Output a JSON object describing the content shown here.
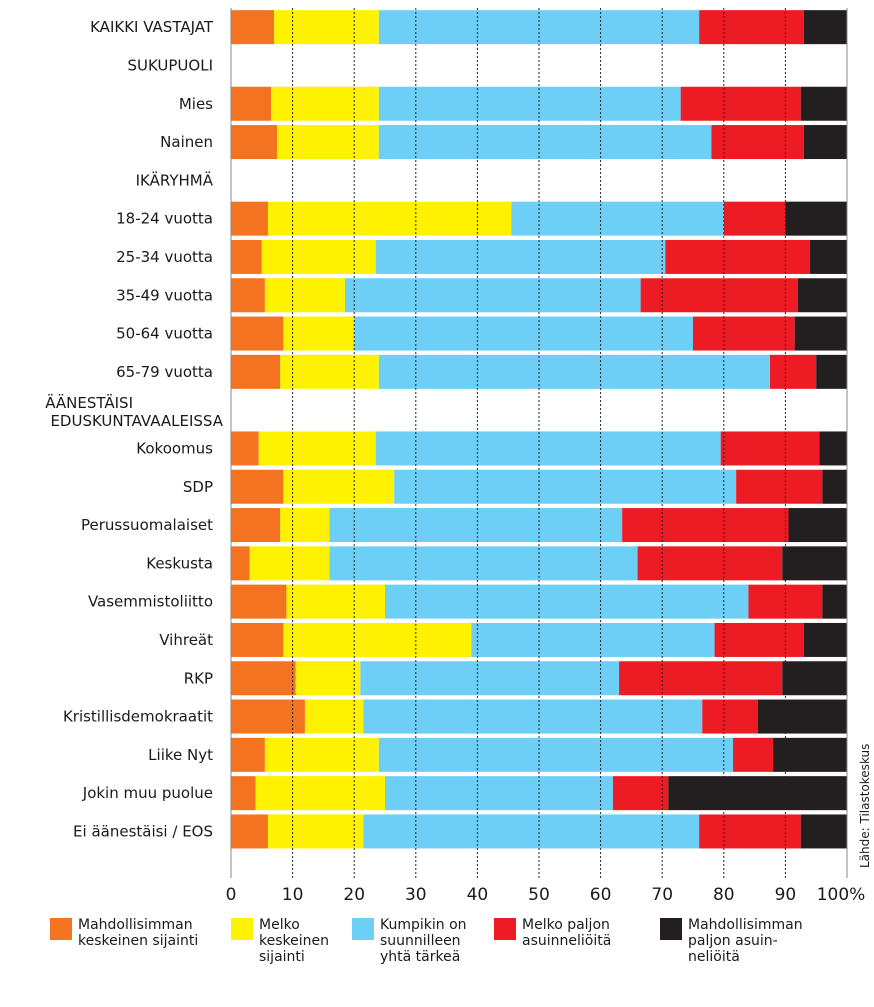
{
  "chart_data": {
    "type": "bar",
    "orientation": "horizontal",
    "stacked": true,
    "xlim": [
      0,
      100
    ],
    "x_ticks": [
      "0",
      "10",
      "20",
      "30",
      "40",
      "50",
      "60",
      "70",
      "80",
      "90",
      "100%"
    ],
    "grid": "vertical dotted",
    "source": "Lähde: Tilastokeskus",
    "series": [
      {
        "name": "Mahdollisimman\nkeskeinen sijainti",
        "color": "#f37321"
      },
      {
        "name": "Melko\nkeskeinen\nsijainti",
        "color": "#fff200"
      },
      {
        "name": "Kumpikin on\nsuunnilleen\nyhtä tärkeä",
        "color": "#6dcff6"
      },
      {
        "name": "Melko paljon\nasuinneliöitä",
        "color": "#ed1c24"
      },
      {
        "name": "Mahdollisimman\npaljon asuin-\nneliöitä",
        "color": "#231f20"
      }
    ],
    "rows": [
      {
        "label": "KAIKKI VASTAJAT",
        "values": [
          7,
          17,
          52,
          17,
          7
        ]
      },
      {
        "label": "SUKUPUOLI",
        "header": true
      },
      {
        "label": "Mies",
        "values": [
          6.5,
          17.5,
          49,
          19.5,
          7.5
        ]
      },
      {
        "label": "Nainen",
        "values": [
          7.5,
          16.5,
          54,
          15,
          7
        ]
      },
      {
        "label": "IKÄRYHMÄ",
        "header": true
      },
      {
        "label": "18-24 vuotta",
        "values": [
          6,
          39.5,
          34.5,
          10,
          10
        ]
      },
      {
        "label": "25-34 vuotta",
        "values": [
          5,
          18.5,
          47,
          23.5,
          6
        ]
      },
      {
        "label": "35-49 vuotta",
        "values": [
          5.5,
          13,
          48,
          25.5,
          8
        ]
      },
      {
        "label": "50-64 vuotta",
        "values": [
          8.5,
          11.5,
          55,
          16.5,
          8.5
        ]
      },
      {
        "label": "65-79 vuotta",
        "values": [
          8,
          16,
          63.5,
          7.5,
          5
        ]
      },
      {
        "label": "ÄÄNESTÄISI\nEDUSKUNTAVAALEISSA",
        "header": true
      },
      {
        "label": "Kokoomus",
        "values": [
          4.5,
          19,
          56,
          16,
          4.5
        ]
      },
      {
        "label": "SDP",
        "values": [
          8.5,
          18,
          55.5,
          14,
          4
        ]
      },
      {
        "label": "Perussuomalaiset",
        "values": [
          8,
          8,
          47.5,
          27,
          9.5
        ]
      },
      {
        "label": "Keskusta",
        "values": [
          3,
          13,
          50,
          23.5,
          10.5
        ]
      },
      {
        "label": "Vasemmistoliitto",
        "values": [
          9,
          16,
          59,
          12,
          4
        ]
      },
      {
        "label": "Vihreät",
        "values": [
          8.5,
          30.5,
          39.5,
          14.5,
          7
        ]
      },
      {
        "label": "RKP",
        "values": [
          10.5,
          10.5,
          42,
          26.5,
          10.5
        ]
      },
      {
        "label": "Kristillisdemokraatit",
        "values": [
          12,
          9.5,
          55,
          9,
          14.5
        ]
      },
      {
        "label": "Liike Nyt",
        "values": [
          5.5,
          18.5,
          57.5,
          6.5,
          12
        ]
      },
      {
        "label": "Jokin muu puolue",
        "values": [
          4,
          21,
          37,
          9,
          29
        ]
      },
      {
        "label": "Ei äänestäisi / EOS",
        "values": [
          6,
          15.5,
          54.5,
          16.5,
          7.5
        ]
      }
    ]
  }
}
